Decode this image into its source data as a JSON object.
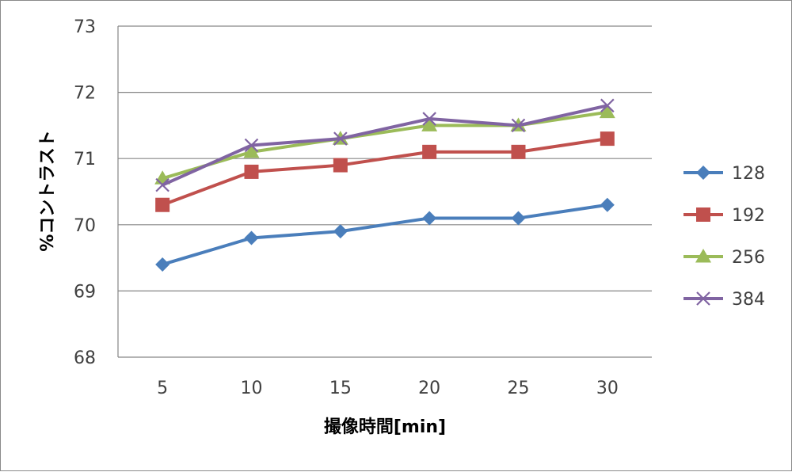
{
  "chart_data": {
    "type": "line",
    "x": [
      5,
      10,
      15,
      20,
      25,
      30
    ],
    "xlabel": "撮像時間[min]",
    "ylabel": "%コントラスト",
    "ylim": [
      68,
      73
    ],
    "yticks": [
      68,
      69,
      70,
      71,
      72,
      73
    ],
    "grid": true,
    "legend_position": "right",
    "series": [
      {
        "name": "128",
        "color": "#4a7ebb",
        "marker": "diamond",
        "values": [
          69.4,
          69.8,
          69.9,
          70.1,
          70.1,
          70.3
        ]
      },
      {
        "name": "192",
        "color": "#c0504d",
        "marker": "square",
        "values": [
          70.3,
          70.8,
          70.9,
          71.1,
          71.1,
          71.3
        ]
      },
      {
        "name": "256",
        "color": "#9bbb59",
        "marker": "triangle",
        "values": [
          70.7,
          71.1,
          71.3,
          71.5,
          71.5,
          71.7
        ]
      },
      {
        "name": "384",
        "color": "#8064a2",
        "marker": "x",
        "values": [
          70.6,
          71.2,
          71.3,
          71.6,
          71.5,
          71.8
        ]
      }
    ]
  }
}
